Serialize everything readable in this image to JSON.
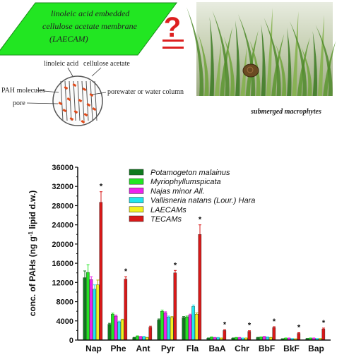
{
  "schematic": {
    "membrane_label_line1": "linoleic acid embedded",
    "membrane_label_line2": "cellulose acetate membrane",
    "membrane_label_line3": "(LAECAM)",
    "linoleic_acid_label": "linoleic acid",
    "cellulose_acetate_label": "cellulose acetate",
    "pah_label": "PAH molecules",
    "pore_label": "pore",
    "porewater_label": "porewater or water column",
    "question_mark": "?",
    "photo_caption": "submerged macrophytes",
    "colors": {
      "membrane_fill": "#22e622",
      "question": "#dd1f1f",
      "pah_dot": "#e04a1a"
    }
  },
  "chart_data": {
    "type": "bar",
    "title": "",
    "xlabel": "",
    "ylabel": "conc. of PAHs (ng g-1 lipid d.w.)",
    "ylabel_parts": {
      "before": "conc. of PAHs (ng g",
      "sup": "-1",
      "after": " lipid d.w.)"
    },
    "ylim": [
      0,
      36000
    ],
    "yticks": [
      "0",
      "4000",
      "8000",
      "12000",
      "16000",
      "20000",
      "24000",
      "28000",
      "32000",
      "36000"
    ],
    "categories": [
      "Nap",
      "Phe",
      "Ant",
      "Pyr",
      "Fla",
      "BaA",
      "Chr",
      "BbF",
      "BkF",
      "Bap"
    ],
    "significance_marker": "*",
    "significant": [
      true,
      true,
      false,
      true,
      true,
      true,
      true,
      true,
      true,
      true
    ],
    "legend_position": "top-right",
    "series": [
      {
        "name": "Potamogeton malainus",
        "color": "#0e7a1e",
        "values": [
          13000,
          3300,
          500,
          4200,
          4700,
          400,
          400,
          500,
          250,
          300
        ],
        "errors": [
          1400,
          200,
          60,
          200,
          200,
          40,
          40,
          60,
          30,
          40
        ]
      },
      {
        "name": "Myriophyllumspicata",
        "color": "#22e622",
        "values": [
          14100,
          5400,
          800,
          6000,
          4800,
          600,
          500,
          600,
          400,
          400
        ],
        "errors": [
          1600,
          200,
          80,
          250,
          200,
          60,
          50,
          60,
          40,
          40
        ]
      },
      {
        "name": "Najas minor All.",
        "color": "#ee22ee",
        "values": [
          12600,
          5000,
          700,
          5700,
          5200,
          500,
          500,
          700,
          400,
          400
        ],
        "errors": [
          600,
          200,
          70,
          200,
          200,
          50,
          50,
          70,
          40,
          40
        ]
      },
      {
        "name": "Vallisneria natans (Lour.) Hara",
        "color": "#22e6ee",
        "values": [
          10600,
          3800,
          700,
          4800,
          7000,
          500,
          400,
          600,
          300,
          300
        ],
        "errors": [
          900,
          150,
          70,
          200,
          300,
          50,
          40,
          60,
          30,
          30
        ]
      },
      {
        "name": "LAECAMs",
        "color": "#f2f21e",
        "values": [
          11500,
          4200,
          500,
          4700,
          5400,
          400,
          400,
          500,
          250,
          300
        ],
        "errors": [
          1000,
          150,
          60,
          200,
          250,
          40,
          40,
          50,
          30,
          30
        ]
      },
      {
        "name": "TECAMs",
        "color": "#d81818",
        "values": [
          28700,
          12700,
          2700,
          14000,
          22000,
          2000,
          1800,
          2600,
          1400,
          2300
        ],
        "errors": [
          2200,
          500,
          200,
          500,
          2000,
          150,
          150,
          200,
          150,
          200
        ]
      }
    ]
  }
}
